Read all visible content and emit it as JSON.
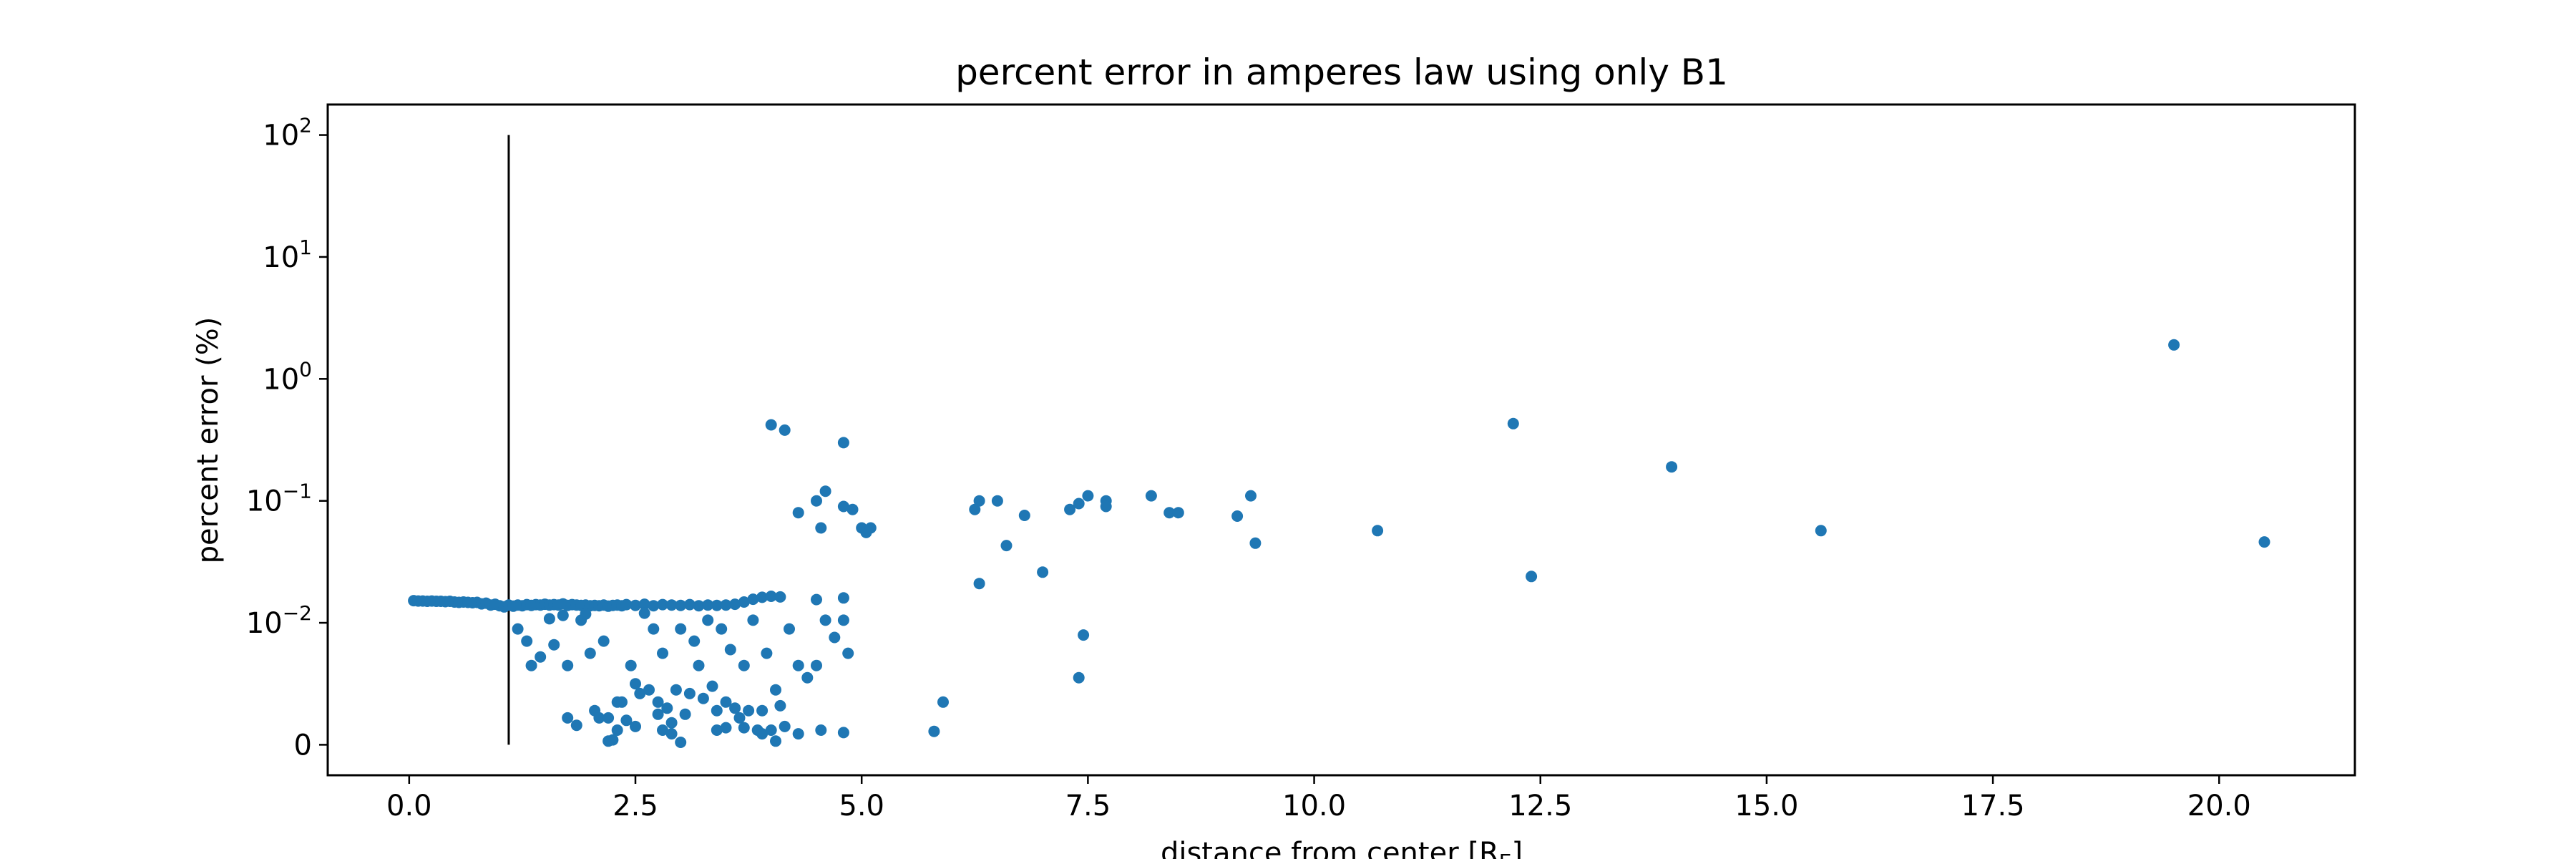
{
  "chart_data": {
    "type": "scatter",
    "title": "percent error in amperes law using only B1",
    "xlabel": "distance from center [R",
    "xlabel_sub": "E",
    "xlabel_end": "]",
    "ylabel": "percent error (%)",
    "xlim": [
      -0.9,
      21.5
    ],
    "yscale": "symlog",
    "ylim_decades": [
      -0.25,
      2.25
    ],
    "xticks": [
      {
        "value": 0.0,
        "label": "0.0"
      },
      {
        "value": 2.5,
        "label": "2.5"
      },
      {
        "value": 5.0,
        "label": "5.0"
      },
      {
        "value": 7.5,
        "label": "7.5"
      },
      {
        "value": 10.0,
        "label": "10.0"
      },
      {
        "value": 12.5,
        "label": "12.5"
      },
      {
        "value": 15.0,
        "label": "15.0"
      },
      {
        "value": 17.5,
        "label": "17.5"
      },
      {
        "value": 20.0,
        "label": "20.0"
      }
    ],
    "yticks": [
      {
        "decade": 2,
        "base": "10",
        "exp": "2"
      },
      {
        "decade": 1,
        "base": "10",
        "exp": "1"
      },
      {
        "decade": 0,
        "base": "10",
        "exp": "0"
      },
      {
        "decade": -1,
        "base": "10",
        "exp": "−1"
      },
      {
        "decade": -2,
        "base": "10",
        "exp": "−2"
      },
      {
        "decade": null,
        "base": "0",
        "exp": ""
      }
    ],
    "vline": {
      "x": 1.1,
      "y_from": 0,
      "y_to": 100
    },
    "series_color": "#1f77b4",
    "points": [
      [
        0.05,
        0.0152
      ],
      [
        0.1,
        0.0151
      ],
      [
        0.15,
        0.0151
      ],
      [
        0.2,
        0.015
      ],
      [
        0.25,
        0.0151
      ],
      [
        0.3,
        0.015
      ],
      [
        0.35,
        0.015
      ],
      [
        0.4,
        0.0149
      ],
      [
        0.45,
        0.015
      ],
      [
        0.5,
        0.0148
      ],
      [
        0.55,
        0.0147
      ],
      [
        0.6,
        0.0148
      ],
      [
        0.65,
        0.0147
      ],
      [
        0.7,
        0.0146
      ],
      [
        0.75,
        0.0147
      ],
      [
        0.8,
        0.0143
      ],
      [
        0.85,
        0.0145
      ],
      [
        0.9,
        0.014
      ],
      [
        0.95,
        0.0142
      ],
      [
        1.0,
        0.0138
      ],
      [
        1.05,
        0.0135
      ],
      [
        1.1,
        0.014
      ],
      [
        1.15,
        0.0137
      ],
      [
        1.2,
        0.014
      ],
      [
        1.25,
        0.0138
      ],
      [
        1.3,
        0.0141
      ],
      [
        1.35,
        0.0139
      ],
      [
        1.4,
        0.0141
      ],
      [
        1.45,
        0.014
      ],
      [
        1.5,
        0.0142
      ],
      [
        1.55,
        0.014
      ],
      [
        1.6,
        0.0141
      ],
      [
        1.65,
        0.014
      ],
      [
        1.7,
        0.0143
      ],
      [
        1.75,
        0.0139
      ],
      [
        1.8,
        0.0141
      ],
      [
        1.85,
        0.014
      ],
      [
        1.9,
        0.0139
      ],
      [
        1.95,
        0.014
      ],
      [
        2.0,
        0.0138
      ],
      [
        2.05,
        0.0139
      ],
      [
        2.1,
        0.0138
      ],
      [
        2.15,
        0.014
      ],
      [
        2.2,
        0.0137
      ],
      [
        2.25,
        0.0139
      ],
      [
        2.3,
        0.014
      ],
      [
        2.35,
        0.0138
      ],
      [
        2.4,
        0.0141
      ],
      [
        2.5,
        0.0139
      ],
      [
        2.6,
        0.0142
      ],
      [
        2.7,
        0.0138
      ],
      [
        2.8,
        0.0141
      ],
      [
        2.9,
        0.014
      ],
      [
        3.0,
        0.0139
      ],
      [
        3.1,
        0.0141
      ],
      [
        3.2,
        0.0138
      ],
      [
        3.3,
        0.014
      ],
      [
        3.4,
        0.0139
      ],
      [
        3.5,
        0.014
      ],
      [
        3.6,
        0.0142
      ],
      [
        3.7,
        0.0148
      ],
      [
        3.8,
        0.0156
      ],
      [
        3.9,
        0.0162
      ],
      [
        4.0,
        0.0165
      ],
      [
        4.1,
        0.0163
      ],
      [
        4.5,
        0.0155
      ],
      [
        4.8,
        0.016
      ],
      [
        1.2,
        0.0095
      ],
      [
        1.3,
        0.0085
      ],
      [
        1.35,
        0.0065
      ],
      [
        1.45,
        0.0072
      ],
      [
        1.55,
        0.0108
      ],
      [
        1.6,
        0.0082
      ],
      [
        1.7,
        0.0115
      ],
      [
        1.75,
        0.0065
      ],
      [
        1.75,
        0.0022
      ],
      [
        1.85,
        0.0016
      ],
      [
        1.9,
        0.0105
      ],
      [
        1.95,
        0.0118
      ],
      [
        2.0,
        0.0075
      ],
      [
        2.05,
        0.0028
      ],
      [
        2.1,
        0.0022
      ],
      [
        2.15,
        0.0085
      ],
      [
        2.2,
        0.0022
      ],
      [
        2.25,
        0.0004
      ],
      [
        2.3,
        0.0035
      ],
      [
        2.35,
        0.0035
      ],
      [
        2.4,
        0.002
      ],
      [
        2.45,
        0.0065
      ],
      [
        2.5,
        0.005
      ],
      [
        2.55,
        0.0042
      ],
      [
        2.6,
        0.012
      ],
      [
        2.65,
        0.0045
      ],
      [
        2.7,
        0.0095
      ],
      [
        2.75,
        0.0025
      ],
      [
        2.75,
        0.0035
      ],
      [
        2.8,
        0.0075
      ],
      [
        2.85,
        0.003
      ],
      [
        2.9,
        0.0018
      ],
      [
        2.95,
        0.0045
      ],
      [
        3.0,
        0.0095
      ],
      [
        3.05,
        0.0025
      ],
      [
        3.1,
        0.0042
      ],
      [
        3.15,
        0.0085
      ],
      [
        3.2,
        0.0065
      ],
      [
        3.25,
        0.0038
      ],
      [
        3.3,
        0.0105
      ],
      [
        3.35,
        0.0048
      ],
      [
        3.4,
        0.0028
      ],
      [
        3.45,
        0.0095
      ],
      [
        3.5,
        0.0035
      ],
      [
        3.55,
        0.0078
      ],
      [
        3.6,
        0.003
      ],
      [
        3.65,
        0.0022
      ],
      [
        3.7,
        0.0065
      ],
      [
        3.75,
        0.0028
      ],
      [
        3.8,
        0.0105
      ],
      [
        3.85,
        0.0012
      ],
      [
        3.9,
        0.0028
      ],
      [
        3.95,
        0.0075
      ],
      [
        4.05,
        0.0045
      ],
      [
        4.1,
        0.0032
      ],
      [
        4.15,
        0.0015
      ],
      [
        4.2,
        0.0095
      ],
      [
        4.3,
        0.0065
      ],
      [
        4.4,
        0.0055
      ],
      [
        4.5,
        0.0065
      ],
      [
        4.55,
        0.0012
      ],
      [
        4.6,
        0.0105
      ],
      [
        4.7,
        0.0088
      ],
      [
        4.8,
        0.0105
      ],
      [
        4.85,
        0.0075
      ],
      [
        2.2,
        0.0003
      ],
      [
        2.3,
        0.0012
      ],
      [
        2.5,
        0.0015
      ],
      [
        2.8,
        0.0012
      ],
      [
        2.9,
        0.0009
      ],
      [
        3.0,
        0.0002
      ],
      [
        3.4,
        0.0012
      ],
      [
        3.5,
        0.0014
      ],
      [
        3.7,
        0.0014
      ],
      [
        3.9,
        0.0009
      ],
      [
        4.0,
        0.0012
      ],
      [
        4.05,
        0.0003
      ],
      [
        4.3,
        0.0009
      ],
      [
        4.8,
        0.001
      ],
      [
        5.8,
        0.0011
      ],
      [
        4.0,
        0.42
      ],
      [
        4.15,
        0.38
      ],
      [
        4.8,
        0.3
      ],
      [
        4.6,
        0.12
      ],
      [
        4.5,
        0.1
      ],
      [
        4.8,
        0.09
      ],
      [
        4.3,
        0.08
      ],
      [
        4.9,
        0.085
      ],
      [
        5.0,
        0.06
      ],
      [
        5.05,
        0.055
      ],
      [
        5.1,
        0.06
      ],
      [
        4.55,
        0.06
      ],
      [
        5.9,
        0.0035
      ],
      [
        6.3,
        0.1
      ],
      [
        6.25,
        0.085
      ],
      [
        6.5,
        0.1
      ],
      [
        6.3,
        0.021
      ],
      [
        6.6,
        0.043
      ],
      [
        6.8,
        0.076
      ],
      [
        7.0,
        0.026
      ],
      [
        7.3,
        0.085
      ],
      [
        7.4,
        0.095
      ],
      [
        7.5,
        0.11
      ],
      [
        7.45,
        0.009
      ],
      [
        7.4,
        0.0055
      ],
      [
        7.7,
        0.1
      ],
      [
        7.7,
        0.09
      ],
      [
        8.2,
        0.11
      ],
      [
        8.4,
        0.08
      ],
      [
        8.5,
        0.08
      ],
      [
        9.15,
        0.075
      ],
      [
        9.3,
        0.11
      ],
      [
        9.35,
        0.045
      ],
      [
        10.7,
        0.057
      ],
      [
        12.2,
        0.43
      ],
      [
        12.4,
        0.024
      ],
      [
        13.95,
        0.19
      ],
      [
        15.6,
        0.057
      ],
      [
        19.5,
        1.9
      ],
      [
        20.5,
        0.046
      ]
    ]
  }
}
